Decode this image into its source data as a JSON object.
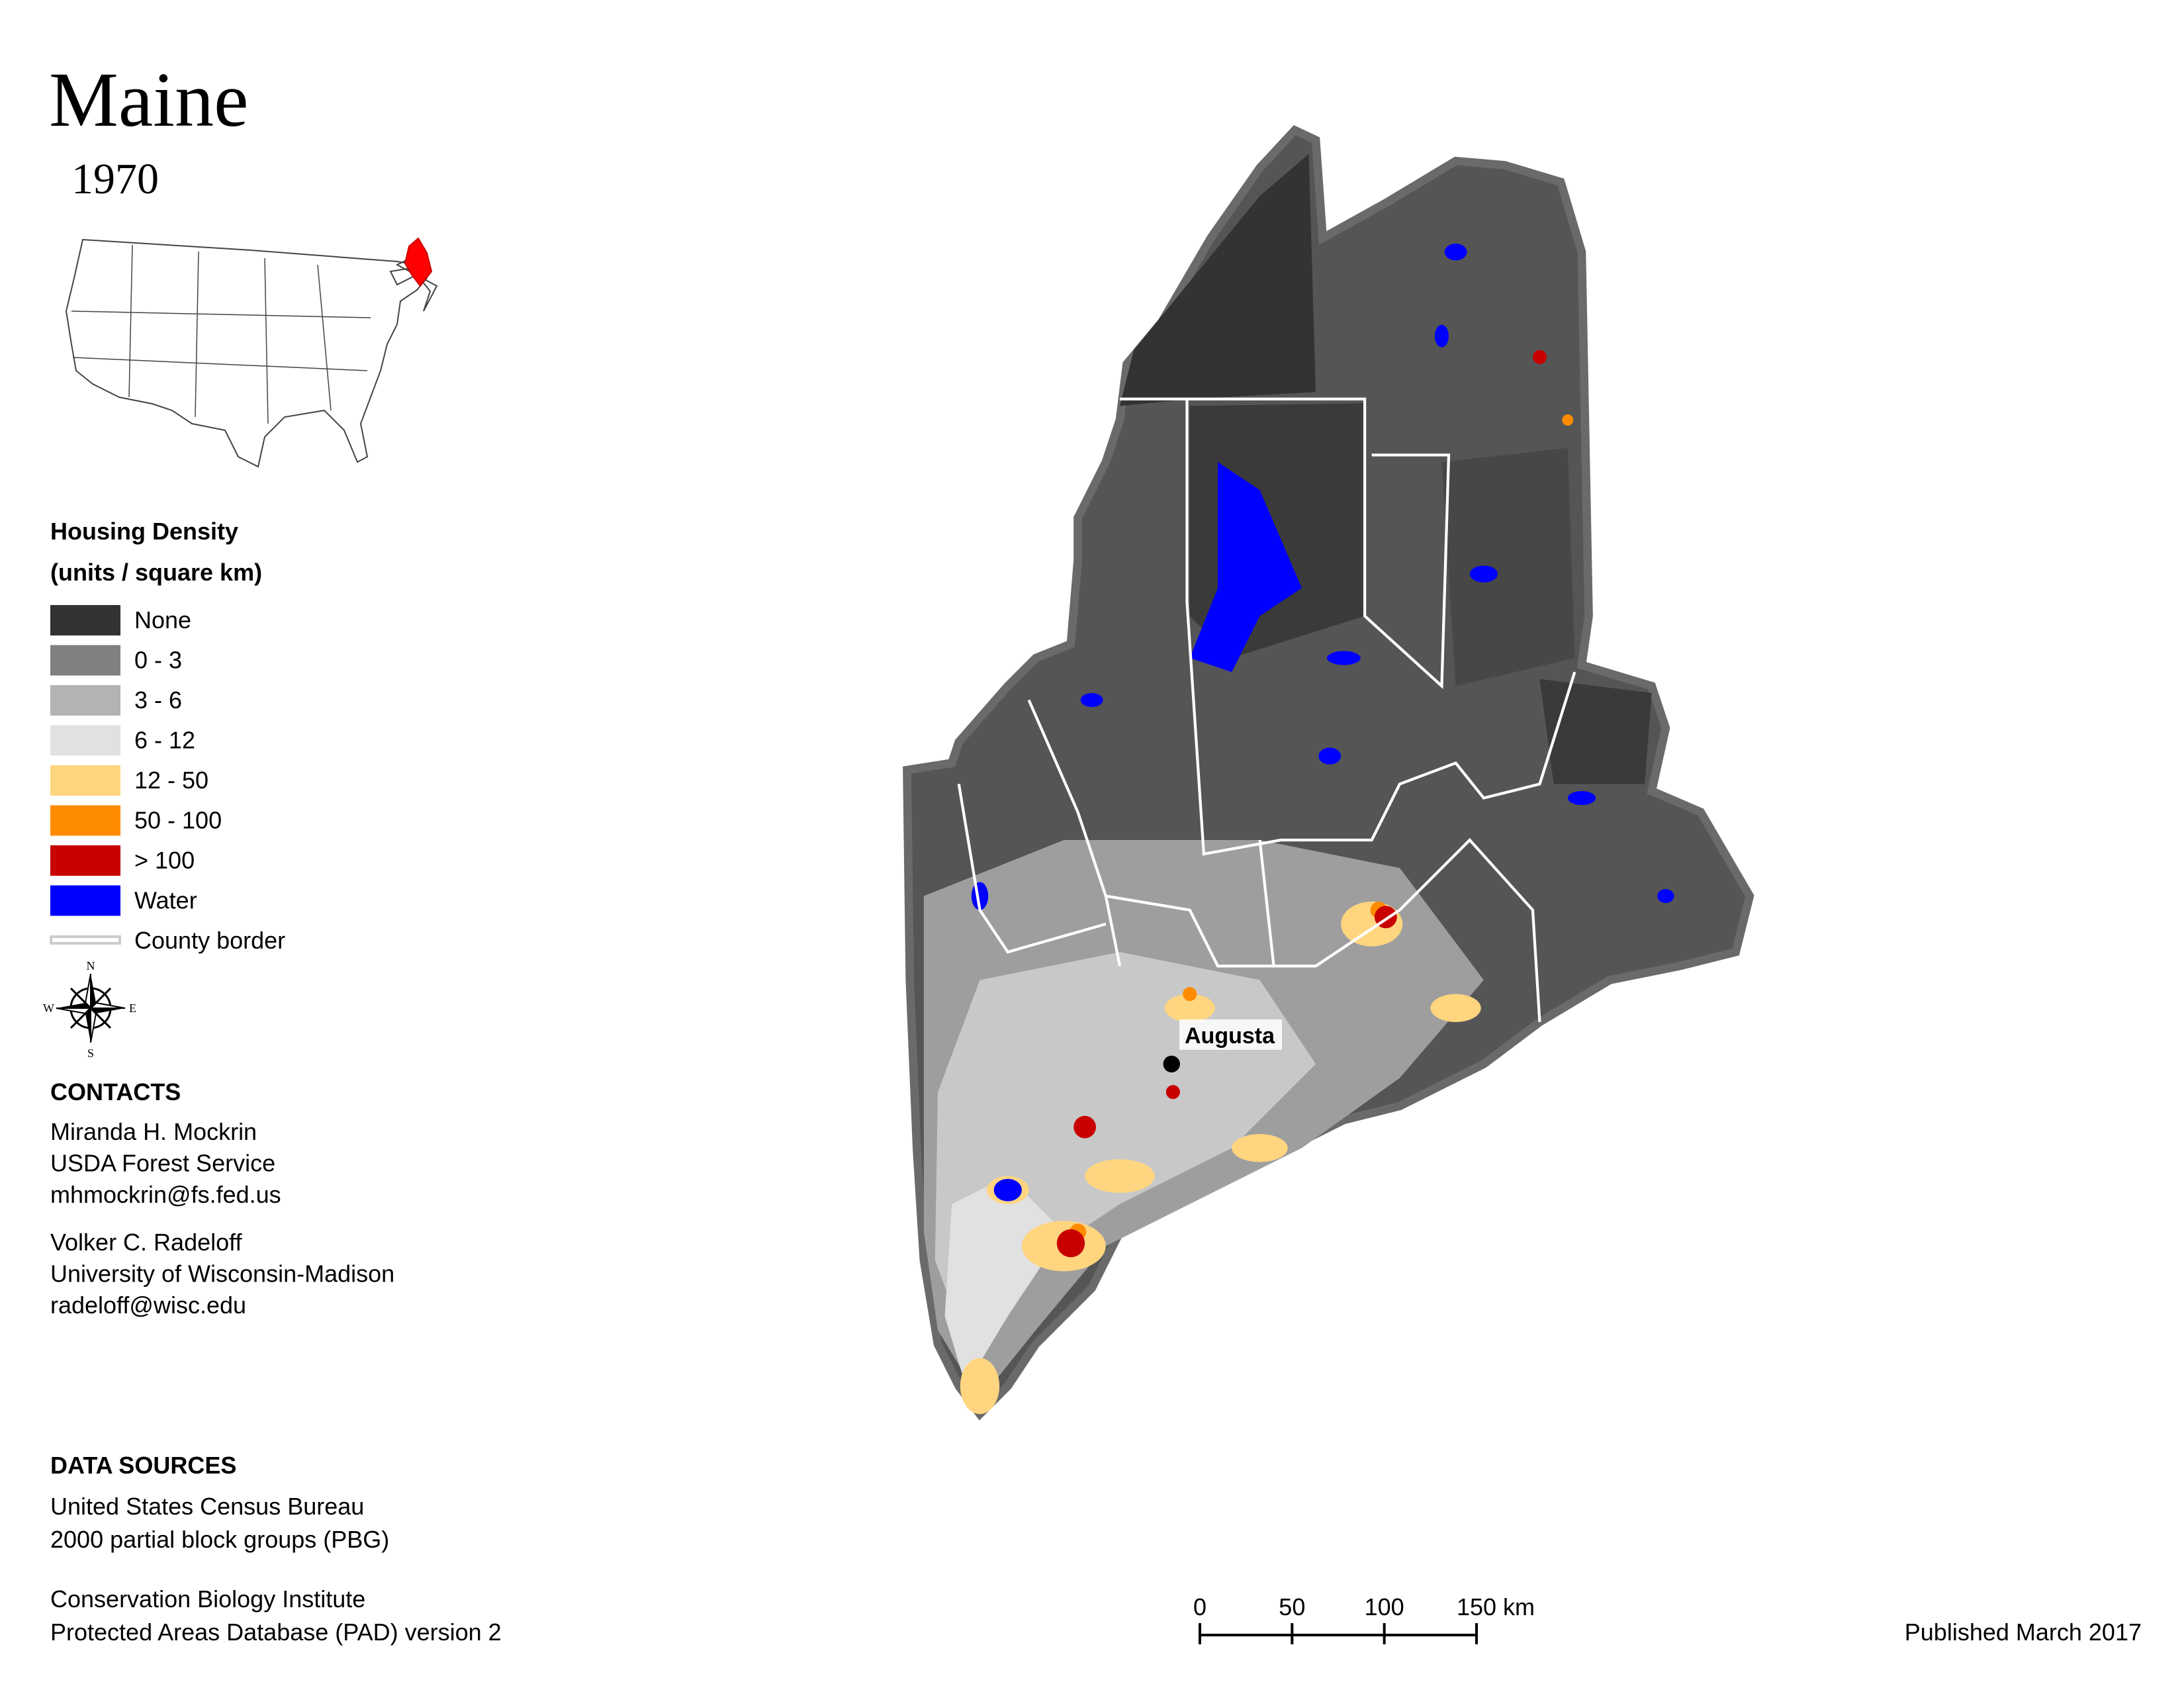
{
  "header": {
    "title": "Maine",
    "year": "1970"
  },
  "legend": {
    "title": "Housing Density",
    "subtitle": "(units / square km)",
    "items": [
      {
        "label": "None",
        "color": "#333333"
      },
      {
        "label": "0 - 3",
        "color": "#808080"
      },
      {
        "label": "3 - 6",
        "color": "#b3b3b3"
      },
      {
        "label": "6 - 12",
        "color": "#e1e1e1"
      },
      {
        "label": "12 - 50",
        "color": "#ffd580"
      },
      {
        "label": "50 - 100",
        "color": "#ff8c00"
      },
      {
        "label": "> 100",
        "color": "#c80000"
      },
      {
        "label": "Water",
        "color": "#0000ff"
      },
      {
        "label": "County border",
        "color": "#cccccc"
      }
    ]
  },
  "compass": {
    "n": "N",
    "s": "S",
    "e": "E",
    "w": "W"
  },
  "map": {
    "city": "Augusta"
  },
  "contacts": {
    "heading": "CONTACTS",
    "people": [
      [
        "Miranda H. Mockrin",
        "USDA Forest Service",
        "mhmockrin@fs.fed.us"
      ],
      [
        "Volker C. Radeloff",
        "University of Wisconsin-Madison",
        "radeloff@wisc.edu"
      ]
    ]
  },
  "data_sources": {
    "heading": "DATA SOURCES",
    "entries": [
      [
        "United States Census Bureau",
        "2000 partial block groups (PBG)"
      ],
      [
        "Conservation Biology Institute",
        "Protected Areas Database (PAD) version 2"
      ]
    ]
  },
  "scale_bar": {
    "ticks": [
      0,
      50,
      100,
      150
    ],
    "unit": "km"
  },
  "footer": {
    "published": "Published March 2017"
  }
}
